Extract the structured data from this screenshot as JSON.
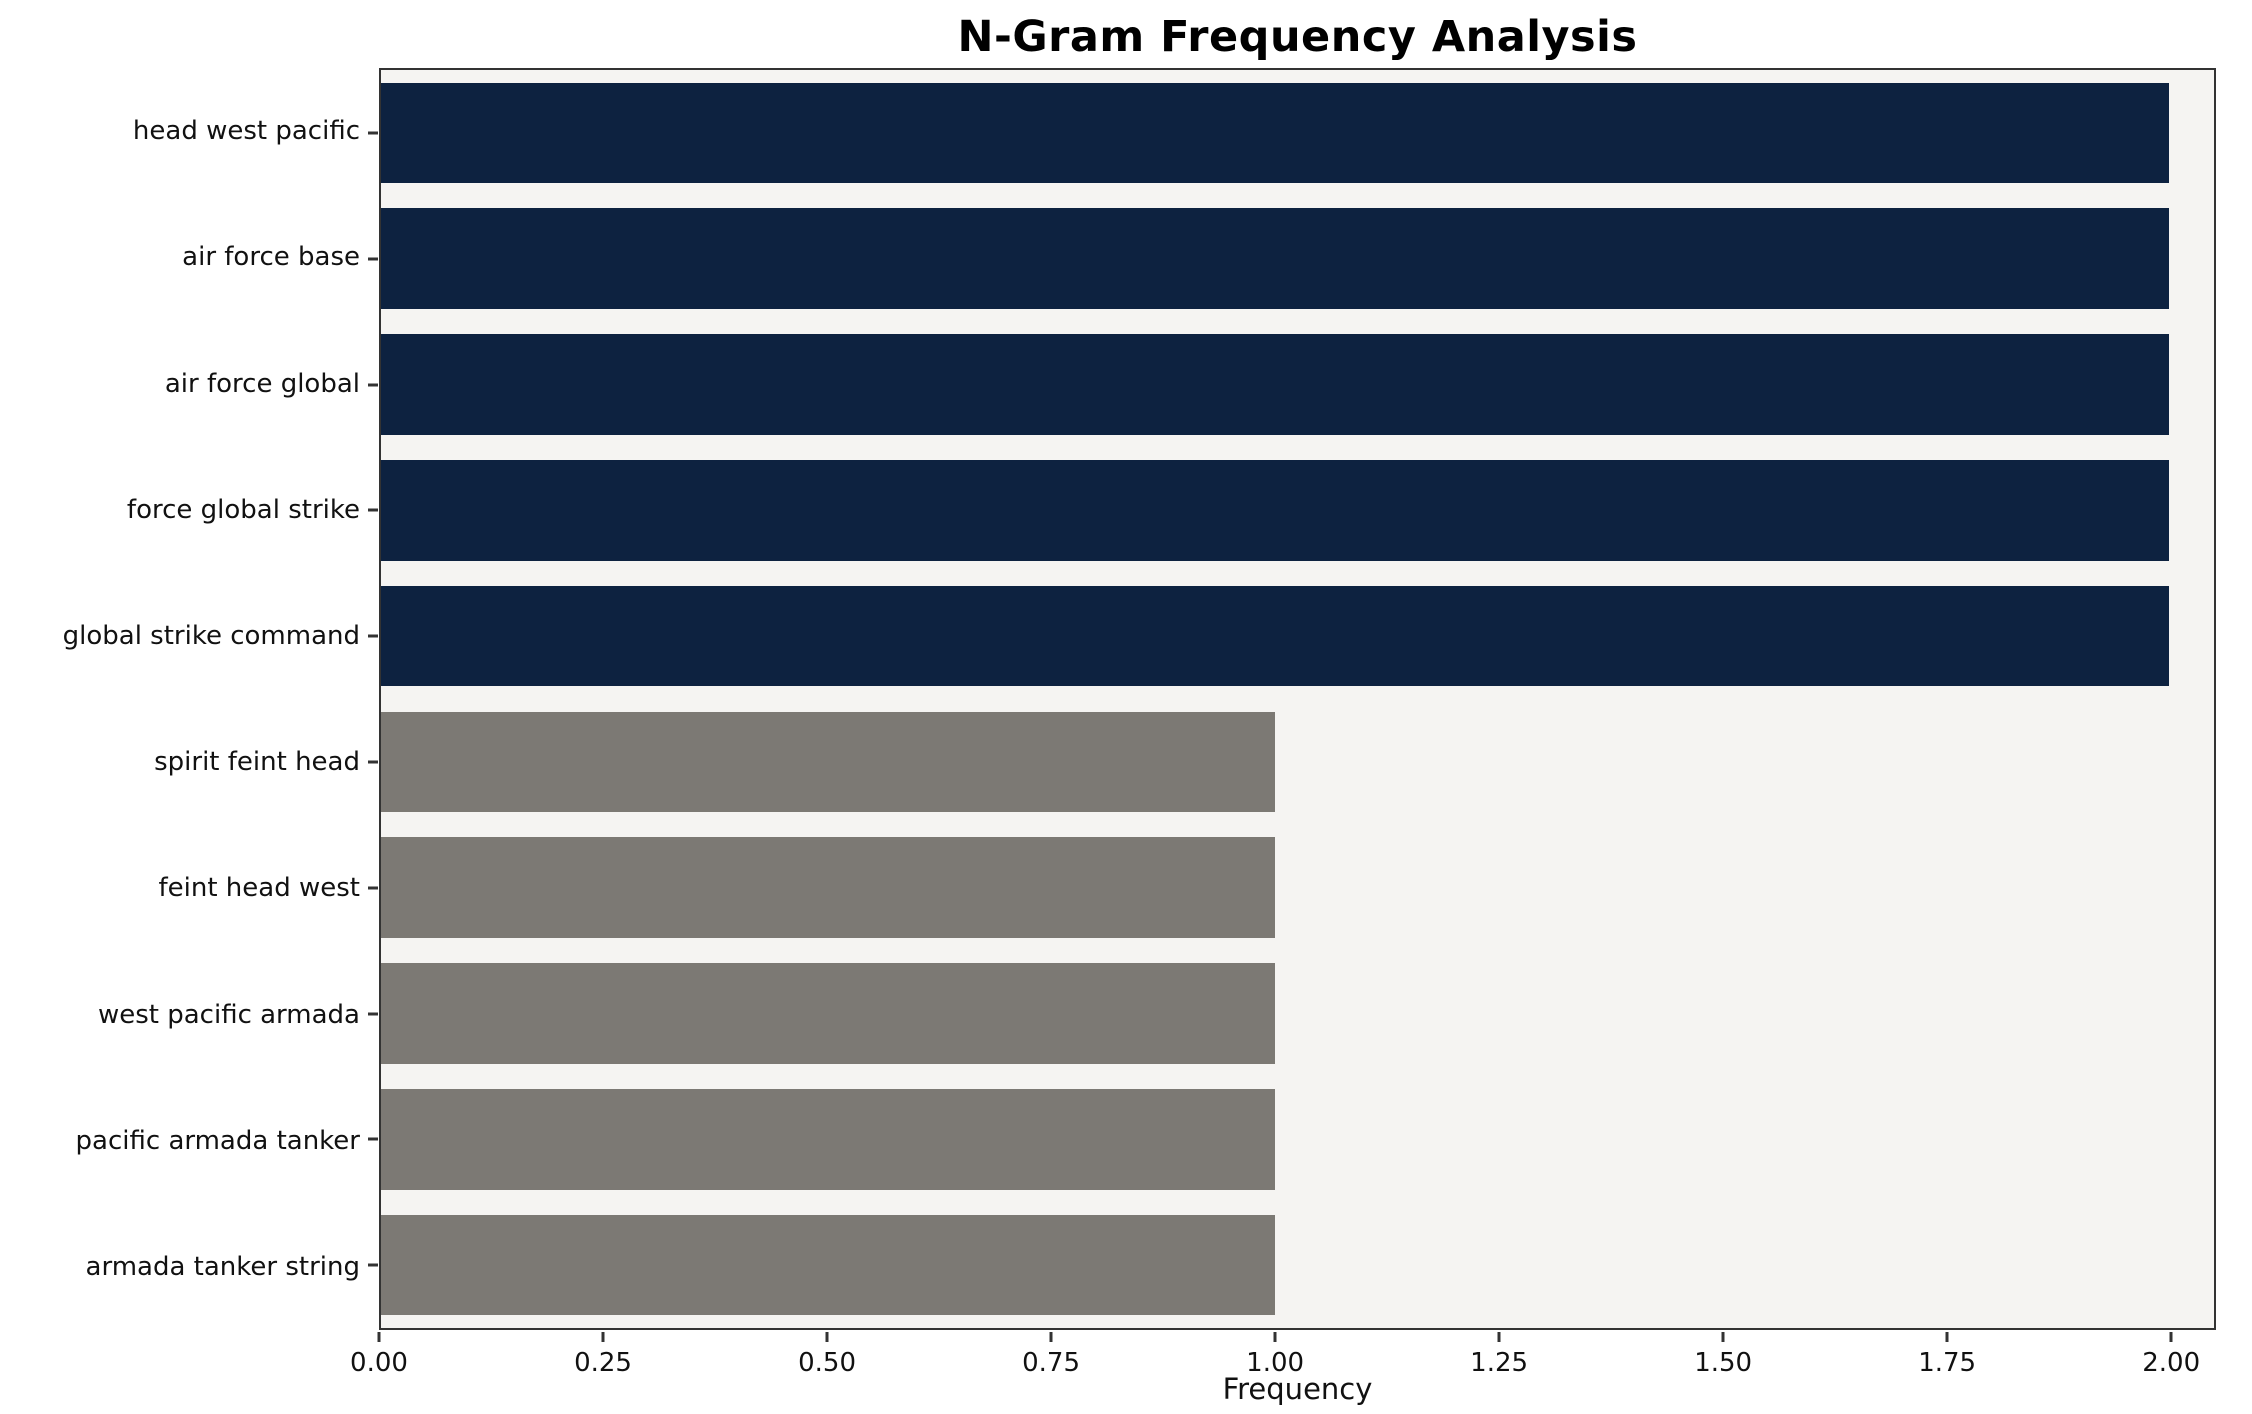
{
  "chart_data": {
    "type": "bar",
    "orientation": "horizontal",
    "title": "N-Gram Frequency Analysis",
    "xlabel": "Frequency",
    "ylabel": "",
    "categories": [
      "head west pacific",
      "air force base",
      "air force global",
      "force global strike",
      "global strike command",
      "spirit feint head",
      "feint head west",
      "west pacific armada",
      "pacific armada tanker",
      "armada tanker string"
    ],
    "values": [
      2,
      2,
      2,
      2,
      2,
      1,
      1,
      1,
      1,
      1
    ],
    "bar_colors": [
      "#0d2240",
      "#0d2240",
      "#0d2240",
      "#0d2240",
      "#0d2240",
      "#7c7974",
      "#7c7974",
      "#7c7974",
      "#7c7974",
      "#7c7974"
    ],
    "colors": {
      "frequency_2": "#0d2240",
      "frequency_1": "#7c7974",
      "plot_background": "#f5f4f2",
      "axis_spine": "#333333"
    },
    "xlim": [
      0,
      2.05
    ],
    "xticks": [
      0,
      0.25,
      0.5,
      0.75,
      1.0,
      1.25,
      1.5,
      1.75,
      2.0
    ],
    "xtick_labels": [
      "0.00",
      "0.25",
      "0.50",
      "0.75",
      "1.00",
      "1.25",
      "1.50",
      "1.75",
      "2.00"
    ],
    "grid": false,
    "legend": "none",
    "bar_fraction": 0.8
  }
}
